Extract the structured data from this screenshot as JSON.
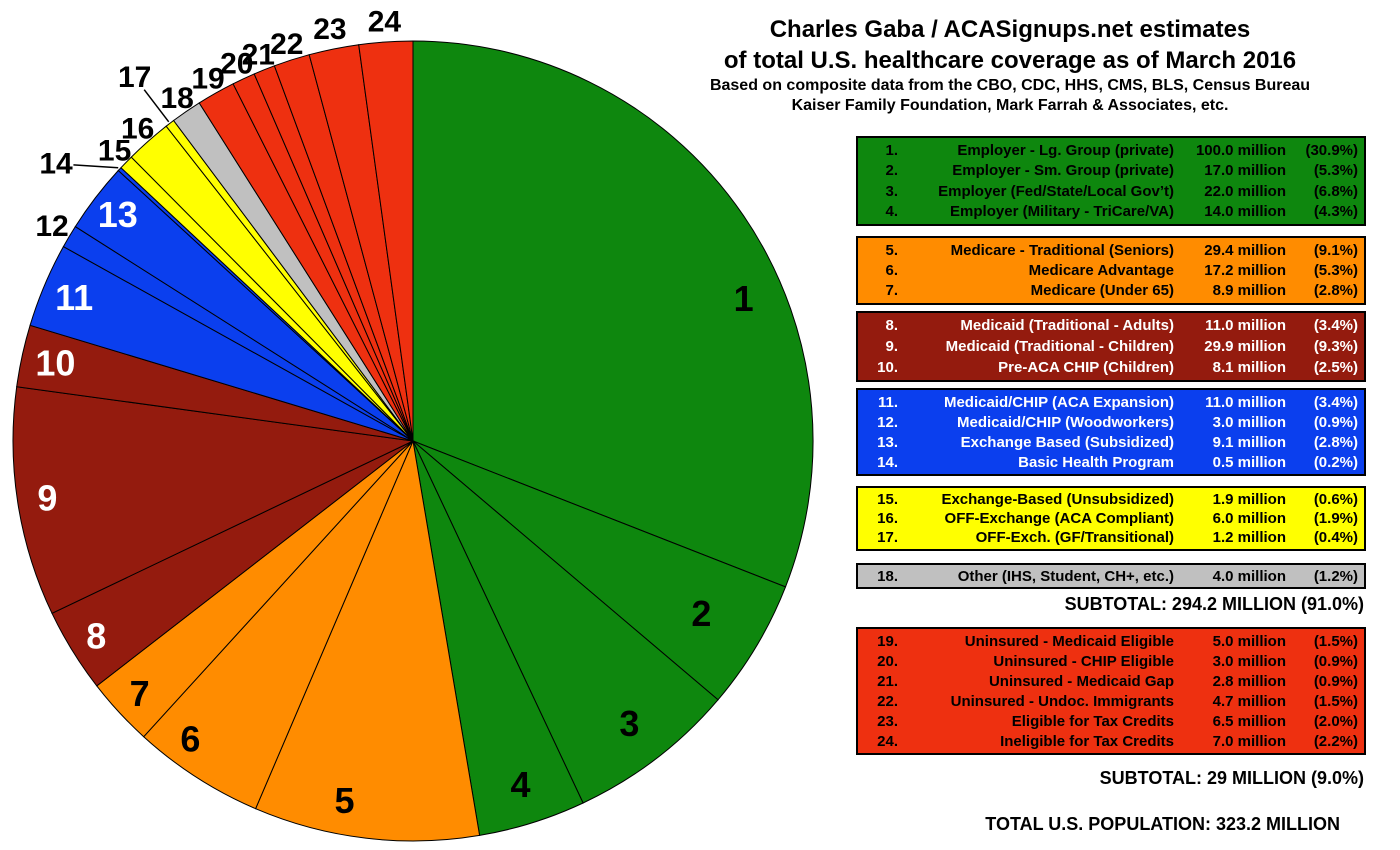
{
  "header": {
    "title_line1": "Charles Gaba / ACASignups.net estimates",
    "title_line2": "of total U.S. healthcare coverage as of March 2016",
    "subtitle_line1": "Based on composite data from the CBO, CDC, HHS, CMS, BLS, Census Bureau",
    "subtitle_line2": "Kaiser Family Foundation, Mark Farrah & Associates, etc."
  },
  "chart_data": {
    "type": "pie",
    "title": "Charles Gaba / ACASignups.net estimates of total U.S. healthcare coverage as of March 2016",
    "start": "12-oclock",
    "direction": "clockwise",
    "total_millions": 323.2,
    "slices": [
      {
        "num": 1,
        "num_text": "1.",
        "label": "Employer - Lg. Group (private)",
        "millions": 100.0,
        "value_text": "100.0 million",
        "pct_text": "(30.9%)"
      },
      {
        "num": 2,
        "num_text": "2.",
        "label": "Employer - Sm. Group (private)",
        "millions": 17.0,
        "value_text": "17.0 million",
        "pct_text": "(5.3%)"
      },
      {
        "num": 3,
        "num_text": "3.",
        "label": "Employer (Fed/State/Local Gov’t)",
        "millions": 22.0,
        "value_text": "22.0 million",
        "pct_text": "(6.8%)"
      },
      {
        "num": 4,
        "num_text": "4.",
        "label": "Employer (Military - TriCare/VA)",
        "millions": 14.0,
        "value_text": "14.0 million",
        "pct_text": "(4.3%)"
      },
      {
        "num": 5,
        "num_text": "5.",
        "label": "Medicare - Traditional (Seniors)",
        "millions": 29.4,
        "value_text": "29.4 million",
        "pct_text": "(9.1%)"
      },
      {
        "num": 6,
        "num_text": "6.",
        "label": "Medicare Advantage",
        "millions": 17.2,
        "value_text": "17.2 million",
        "pct_text": "(5.3%)"
      },
      {
        "num": 7,
        "num_text": "7.",
        "label": "Medicare (Under 65)",
        "millions": 8.9,
        "value_text": "8.9 million",
        "pct_text": "(2.8%)"
      },
      {
        "num": 8,
        "num_text": "8.",
        "label": "Medicaid (Traditional - Adults)",
        "millions": 11.0,
        "value_text": "11.0 million",
        "pct_text": "(3.4%)"
      },
      {
        "num": 9,
        "num_text": "9.",
        "label": "Medicaid (Traditional - Children)",
        "millions": 29.9,
        "value_text": "29.9 million",
        "pct_text": "(9.3%)"
      },
      {
        "num": 10,
        "num_text": "10.",
        "label": "Pre-ACA CHIP (Children)",
        "millions": 8.1,
        "value_text": "8.1 million",
        "pct_text": "(2.5%)"
      },
      {
        "num": 11,
        "num_text": "11.",
        "label": "Medicaid/CHIP (ACA Expansion)",
        "millions": 11.0,
        "value_text": "11.0 million",
        "pct_text": "(3.4%)"
      },
      {
        "num": 12,
        "num_text": "12.",
        "label": "Medicaid/CHIP (Woodworkers)",
        "millions": 3.0,
        "value_text": "3.0 million",
        "pct_text": "(0.9%)"
      },
      {
        "num": 13,
        "num_text": "13.",
        "label": "Exchange Based (Subsidized)",
        "millions": 9.1,
        "value_text": "9.1 million",
        "pct_text": "(2.8%)"
      },
      {
        "num": 14,
        "num_text": "14.",
        "label": "Basic Health Program",
        "millions": 0.5,
        "value_text": "0.5 million",
        "pct_text": "(0.2%)"
      },
      {
        "num": 15,
        "num_text": "15.",
        "label": "Exchange-Based (Unsubsidized)",
        "millions": 1.9,
        "value_text": "1.9 million",
        "pct_text": "(0.6%)"
      },
      {
        "num": 16,
        "num_text": "16.",
        "label": "OFF-Exchange (ACA Compliant)",
        "millions": 6.0,
        "value_text": "6.0 million",
        "pct_text": "(1.9%)"
      },
      {
        "num": 17,
        "num_text": "17.",
        "label": "OFF-Exch. (GF/Transitional)",
        "millions": 1.2,
        "value_text": "1.2 million",
        "pct_text": "(0.4%)"
      },
      {
        "num": 18,
        "num_text": "18.",
        "label": "Other (IHS, Student, CH+, etc.)",
        "millions": 4.0,
        "value_text": "4.0 million",
        "pct_text": "(1.2%)"
      },
      {
        "num": 19,
        "num_text": "19.",
        "label": "Uninsured - Medicaid Eligible",
        "millions": 5.0,
        "value_text": "5.0 million",
        "pct_text": "(1.5%)"
      },
      {
        "num": 20,
        "num_text": "20.",
        "label": "Uninsured - CHIP Eligible",
        "millions": 3.0,
        "value_text": "3.0 million",
        "pct_text": "(0.9%)"
      },
      {
        "num": 21,
        "num_text": "21.",
        "label": "Uninsured - Medicaid Gap",
        "millions": 2.8,
        "value_text": "2.8 million",
        "pct_text": "(0.9%)"
      },
      {
        "num": 22,
        "num_text": "22.",
        "label": "Uninsured - Undoc. Immigrants",
        "millions": 4.7,
        "value_text": "4.7 million",
        "pct_text": "(1.5%)"
      },
      {
        "num": 23,
        "num_text": "23.",
        "label": "Eligible for Tax Credits",
        "millions": 6.5,
        "value_text": "6.5 million",
        "pct_text": "(2.0%)"
      },
      {
        "num": 24,
        "num_text": "24.",
        "label": "Ineligible for Tax Credits",
        "millions": 7.0,
        "value_text": "7.0 million",
        "pct_text": "(2.2%)"
      }
    ],
    "groups": [
      {
        "name": "employer",
        "color": "#0E870E",
        "text_color": "#000000",
        "slice_nums": [
          1,
          2,
          3,
          4
        ]
      },
      {
        "name": "medicare",
        "color": "#FF8C00",
        "text_color": "#000000",
        "slice_nums": [
          5,
          6,
          7
        ]
      },
      {
        "name": "medicaid-traditional",
        "color": "#941B0E",
        "text_color": "#FFFFFF",
        "slice_nums": [
          8,
          9,
          10
        ]
      },
      {
        "name": "aca-medicaid-exchange",
        "color": "#0B3FEE",
        "text_color": "#FFFFFF",
        "slice_nums": [
          11,
          12,
          13,
          14
        ]
      },
      {
        "name": "individual-market",
        "color": "#FFFF00",
        "text_color": "#000000",
        "slice_nums": [
          15,
          16,
          17
        ]
      },
      {
        "name": "other-coverage",
        "color": "#C0C0C0",
        "text_color": "#000000",
        "slice_nums": [
          18
        ]
      },
      {
        "name": "uninsured",
        "color": "#EE3010",
        "text_color": "#000000",
        "slice_nums": [
          19,
          20,
          21,
          22,
          23,
          24
        ]
      }
    ],
    "subtotal_insured": "SUBTOTAL: 294.2 MILLION (91.0%)",
    "subtotal_uninsured": "SUBTOTAL: 29 MILLION (9.0%)",
    "total_label": "TOTAL U.S. POPULATION: 323.2 MILLION"
  }
}
